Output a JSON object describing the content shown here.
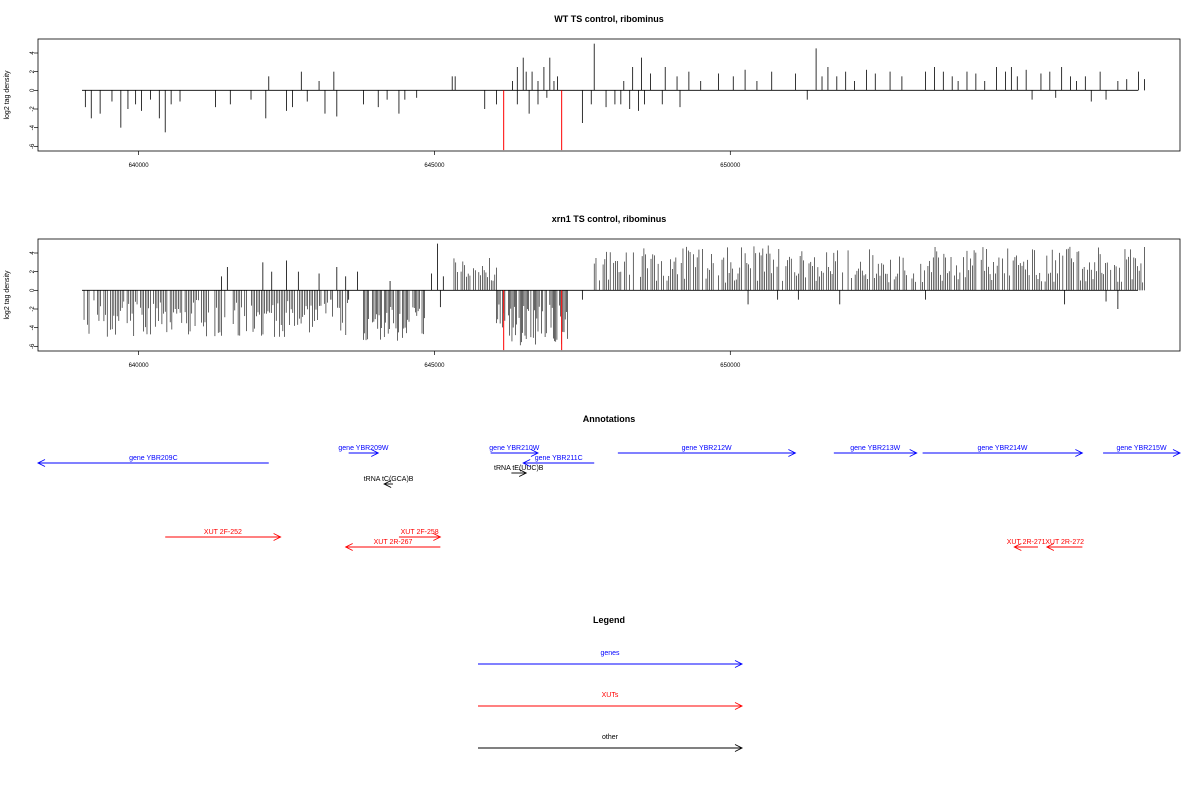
{
  "chart_data": [
    {
      "type": "bar",
      "title": "WT TS control, ribominus",
      "ylabel": "log2 tag density",
      "xlim": [
        638300,
        657600
      ],
      "ylim": [
        -6.5,
        5.5
      ],
      "x_ticks": [
        640000,
        645000,
        650000
      ],
      "y_ticks": [
        4,
        2,
        0,
        -2,
        -4,
        -6
      ],
      "grid": false,
      "bar_color": "#000000",
      "highlight_color": "#ff0000",
      "highlight_bars": [
        {
          "x": 646170,
          "y": -6.4
        },
        {
          "x": 647150,
          "y": -6.4
        }
      ],
      "bars": [
        {
          "x": 639100,
          "y": -1.8
        },
        {
          "x": 639200,
          "y": -3.0
        },
        {
          "x": 639350,
          "y": -2.5
        },
        {
          "x": 639550,
          "y": -1.2
        },
        {
          "x": 639700,
          "y": -4.0
        },
        {
          "x": 639820,
          "y": -2.0
        },
        {
          "x": 639950,
          "y": -1.5
        },
        {
          "x": 640050,
          "y": -2.2
        },
        {
          "x": 640200,
          "y": -1.0
        },
        {
          "x": 640350,
          "y": -3.0
        },
        {
          "x": 640450,
          "y": -4.5
        },
        {
          "x": 640550,
          "y": -1.5
        },
        {
          "x": 640700,
          "y": -1.2
        },
        {
          "x": 641300,
          "y": -1.8
        },
        {
          "x": 641550,
          "y": -1.5
        },
        {
          "x": 641900,
          "y": -1.0
        },
        {
          "x": 642150,
          "y": -3.0
        },
        {
          "x": 642200,
          "y": 1.5
        },
        {
          "x": 642500,
          "y": -2.2
        },
        {
          "x": 642600,
          "y": -1.8
        },
        {
          "x": 642750,
          "y": 2.0
        },
        {
          "x": 642850,
          "y": -1.2
        },
        {
          "x": 643050,
          "y": 1.0
        },
        {
          "x": 643150,
          "y": -2.5
        },
        {
          "x": 643300,
          "y": 2.0
        },
        {
          "x": 643350,
          "y": -2.8
        },
        {
          "x": 643800,
          "y": -1.5
        },
        {
          "x": 644050,
          "y": -1.8
        },
        {
          "x": 644200,
          "y": -1.0
        },
        {
          "x": 644400,
          "y": -2.5
        },
        {
          "x": 644500,
          "y": -1.0
        },
        {
          "x": 644700,
          "y": -0.8
        },
        {
          "x": 645300,
          "y": 1.5
        },
        {
          "x": 645350,
          "y": 1.5
        },
        {
          "x": 645850,
          "y": -2.0
        },
        {
          "x": 646050,
          "y": -1.5
        },
        {
          "x": 646400,
          "y": -1.5
        },
        {
          "x": 646600,
          "y": -2.5
        },
        {
          "x": 646750,
          "y": -1.5
        },
        {
          "x": 646900,
          "y": -0.8
        },
        {
          "x": 647500,
          "y": -3.5
        },
        {
          "x": 647650,
          "y": -1.5
        },
        {
          "x": 647700,
          "y": 5.0
        },
        {
          "x": 647900,
          "y": -1.8
        },
        {
          "x": 648050,
          "y": -1.5
        },
        {
          "x": 648150,
          "y": -1.5
        },
        {
          "x": 648200,
          "y": 1.0
        },
        {
          "x": 648300,
          "y": -2.0
        },
        {
          "x": 648350,
          "y": 2.5
        },
        {
          "x": 648450,
          "y": -2.2
        },
        {
          "x": 648500,
          "y": 3.5
        },
        {
          "x": 648550,
          "y": -1.5
        },
        {
          "x": 648650,
          "y": 1.8
        },
        {
          "x": 648850,
          "y": -1.5
        },
        {
          "x": 648900,
          "y": 2.5
        },
        {
          "x": 649100,
          "y": 1.5
        },
        {
          "x": 649150,
          "y": -1.8
        },
        {
          "x": 649300,
          "y": 2.0
        },
        {
          "x": 649500,
          "y": 1.0
        },
        {
          "x": 649800,
          "y": 1.8
        },
        {
          "x": 650050,
          "y": 1.5
        },
        {
          "x": 650250,
          "y": 2.2
        },
        {
          "x": 650450,
          "y": 1.0
        },
        {
          "x": 650700,
          "y": 2.0
        },
        {
          "x": 651100,
          "y": 1.8
        },
        {
          "x": 651300,
          "y": -1.0
        },
        {
          "x": 651450,
          "y": 4.5
        },
        {
          "x": 651550,
          "y": 1.5
        },
        {
          "x": 651650,
          "y": 2.5
        },
        {
          "x": 651800,
          "y": 1.5
        },
        {
          "x": 651950,
          "y": 2.0
        },
        {
          "x": 652100,
          "y": 1.0
        },
        {
          "x": 652300,
          "y": 2.2
        },
        {
          "x": 652450,
          "y": 1.8
        },
        {
          "x": 652700,
          "y": 2.0
        },
        {
          "x": 652900,
          "y": 1.5
        },
        {
          "x": 653300,
          "y": 2.0
        },
        {
          "x": 653450,
          "y": 2.5
        },
        {
          "x": 653600,
          "y": 2.0
        },
        {
          "x": 653750,
          "y": 1.5
        },
        {
          "x": 653850,
          "y": 1.0
        },
        {
          "x": 654000,
          "y": 2.0
        },
        {
          "x": 654150,
          "y": 1.8
        },
        {
          "x": 654300,
          "y": 1.0
        },
        {
          "x": 654500,
          "y": 2.5
        },
        {
          "x": 654650,
          "y": 2.0
        },
        {
          "x": 654750,
          "y": 2.5
        },
        {
          "x": 654850,
          "y": 1.5
        },
        {
          "x": 655000,
          "y": 2.2
        },
        {
          "x": 655100,
          "y": -1.0
        },
        {
          "x": 655250,
          "y": 1.8
        },
        {
          "x": 655400,
          "y": 2.0
        },
        {
          "x": 655500,
          "y": -0.8
        },
        {
          "x": 655600,
          "y": 2.5
        },
        {
          "x": 655750,
          "y": 1.5
        },
        {
          "x": 655850,
          "y": 1.0
        },
        {
          "x": 656000,
          "y": 1.5
        },
        {
          "x": 656100,
          "y": -1.2
        },
        {
          "x": 656250,
          "y": 2.0
        },
        {
          "x": 656350,
          "y": -1.0
        },
        {
          "x": 656550,
          "y": 1.0
        },
        {
          "x": 656700,
          "y": 1.2
        },
        {
          "x": 656900,
          "y": 2.0
        },
        {
          "x": 657000,
          "y": 1.2
        },
        {
          "x": 646320,
          "y": 1.0
        },
        {
          "x": 646400,
          "y": 2.5
        },
        {
          "x": 646500,
          "y": 3.5
        },
        {
          "x": 646550,
          "y": 2.0
        },
        {
          "x": 646650,
          "y": 2.0
        },
        {
          "x": 646750,
          "y": 1.0
        },
        {
          "x": 646850,
          "y": 2.5
        },
        {
          "x": 646950,
          "y": 3.5
        },
        {
          "x": 647020,
          "y": 1.0
        },
        {
          "x": 647080,
          "y": 1.5
        }
      ]
    },
    {
      "type": "bar",
      "title": "xrn1 TS control, ribominus",
      "ylabel": "log2 tag density",
      "xlim": [
        638300,
        657600
      ],
      "ylim": [
        -6.5,
        5.5
      ],
      "x_ticks": [
        640000,
        645000,
        650000
      ],
      "y_ticks": [
        4,
        2,
        0,
        -2,
        -4,
        -6
      ],
      "grid": false,
      "bar_color": "#000000",
      "highlight_color": "#ff0000",
      "highlight_bars": [
        {
          "x": 646170,
          "y": -6.4
        },
        {
          "x": 647150,
          "y": -6.4
        }
      ],
      "dense_regions": [
        {
          "from": 639050,
          "to": 643550,
          "ymin": -5.0,
          "ymax": -1.0,
          "step": 28,
          "sign": -1
        },
        {
          "from": 643800,
          "to": 644850,
          "ymin": -5.5,
          "ymax": -1.5,
          "step": 22,
          "sign": -1
        },
        {
          "from": 646050,
          "to": 647250,
          "ymin": -6.0,
          "ymax": -1.5,
          "step": 20,
          "sign": -1
        },
        {
          "from": 645300,
          "to": 646050,
          "ymin": 1.0,
          "ymax": 3.5,
          "step": 30,
          "sign": 1
        },
        {
          "from": 647700,
          "to": 657000,
          "ymin": 0.8,
          "ymax": 4.8,
          "step": 30,
          "sign": 1
        }
      ],
      "bars": [
        {
          "x": 641400,
          "y": 1.5
        },
        {
          "x": 641500,
          "y": 2.5
        },
        {
          "x": 642100,
          "y": 3.0
        },
        {
          "x": 642250,
          "y": 2.0
        },
        {
          "x": 642500,
          "y": 3.2
        },
        {
          "x": 642700,
          "y": 2.0
        },
        {
          "x": 643050,
          "y": 1.8
        },
        {
          "x": 643350,
          "y": 2.5
        },
        {
          "x": 643500,
          "y": 1.5
        },
        {
          "x": 643700,
          "y": 2.0
        },
        {
          "x": 644250,
          "y": 1.0
        },
        {
          "x": 644950,
          "y": 1.8
        },
        {
          "x": 645050,
          "y": 5.0
        },
        {
          "x": 645150,
          "y": 1.5
        },
        {
          "x": 643250,
          "y": -1.0
        },
        {
          "x": 643550,
          "y": -1.0
        },
        {
          "x": 645100,
          "y": -1.8
        },
        {
          "x": 647500,
          "y": -1.0
        },
        {
          "x": 650300,
          "y": -1.5
        },
        {
          "x": 650800,
          "y": -1.0
        },
        {
          "x": 651150,
          "y": -1.0
        },
        {
          "x": 651850,
          "y": -1.5
        },
        {
          "x": 653300,
          "y": -1.0
        },
        {
          "x": 655650,
          "y": -1.5
        },
        {
          "x": 656350,
          "y": -1.2
        },
        {
          "x": 656550,
          "y": -2.0
        }
      ]
    }
  ],
  "annotations": {
    "title": "Annotations",
    "xlim": [
      638300,
      657600
    ],
    "genes": [
      {
        "label": "gene YBR209C",
        "from": 642200,
        "to": 638300,
        "strand": "-",
        "row": 1,
        "color": "#0000ff"
      },
      {
        "label": "gene YBR209W",
        "from": 643550,
        "to": 644050,
        "strand": "+",
        "row": 0,
        "color": "#0000ff"
      },
      {
        "label": "gene YBR210W",
        "from": 645950,
        "to": 646750,
        "strand": "+",
        "row": 0,
        "color": "#0000ff"
      },
      {
        "label": "gene YBR211C",
        "from": 647700,
        "to": 646500,
        "strand": "-",
        "row": 1,
        "color": "#0000ff"
      },
      {
        "label": "gene YBR212W",
        "from": 648100,
        "to": 651100,
        "strand": "+",
        "row": 0,
        "color": "#0000ff"
      },
      {
        "label": "gene YBR213W",
        "from": 651750,
        "to": 653150,
        "strand": "+",
        "row": 0,
        "color": "#0000ff"
      },
      {
        "label": "gene YBR214W",
        "from": 653250,
        "to": 655950,
        "strand": "+",
        "row": 0,
        "color": "#0000ff"
      },
      {
        "label": "gene YBR215W",
        "from": 656300,
        "to": 657600,
        "strand": "+",
        "row": 0,
        "color": "#0000ff"
      }
    ],
    "other": [
      {
        "label": "tRNA tC(GCA)B",
        "from": 644300,
        "to": 644150,
        "strand": "-",
        "row": 3,
        "color": "#000000"
      },
      {
        "label": "tRNA tE(UUC)B",
        "from": 646300,
        "to": 646550,
        "strand": "+",
        "row": 2,
        "color": "#000000"
      }
    ],
    "xuts": [
      {
        "label": "XUT 2F-252",
        "from": 640450,
        "to": 642400,
        "strand": "+",
        "row": 0,
        "color": "#ff0000"
      },
      {
        "label": "XUT 2F-258",
        "from": 644400,
        "to": 645100,
        "strand": "+",
        "row": 0,
        "color": "#ff0000"
      },
      {
        "label": "XUT 2R-267",
        "from": 645100,
        "to": 643500,
        "strand": "-",
        "row": 1,
        "color": "#ff0000"
      },
      {
        "label": "XUT 2R-271",
        "from": 655200,
        "to": 654800,
        "strand": "-",
        "row": 1,
        "color": "#ff0000"
      },
      {
        "label": "XUT 2R-272",
        "from": 655950,
        "to": 655350,
        "strand": "-",
        "row": 1,
        "color": "#ff0000"
      }
    ]
  },
  "legend": {
    "title": "Legend",
    "entries": [
      {
        "label": "genes",
        "color": "#0000ff"
      },
      {
        "label": "XUTs",
        "color": "#ff0000"
      },
      {
        "label": "other",
        "color": "#000000"
      }
    ]
  }
}
